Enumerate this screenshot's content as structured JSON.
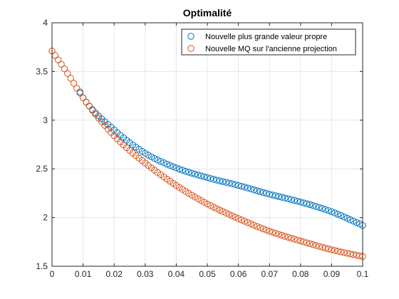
{
  "chart_data": {
    "type": "scatter",
    "title": "Optimalité",
    "xlabel": "",
    "ylabel": "",
    "xlim": [
      0,
      0.1
    ],
    "ylim": [
      1.5,
      4
    ],
    "xticks": [
      "0",
      "0.01",
      "0.02",
      "0.03",
      "0.04",
      "0.05",
      "0.06",
      "0.07",
      "0.08",
      "0.09",
      "0.1"
    ],
    "yticks": [
      "1.5",
      "2",
      "2.5",
      "3",
      "3.5",
      "4"
    ],
    "grid": true,
    "legend_position": "top-right",
    "marker": "open-circle",
    "series": [
      {
        "name": "Nouvelle plus grande valeur propre",
        "color": "#0072BD",
        "x": [
          0.009,
          0.01,
          0.02,
          0.03,
          0.04,
          0.05,
          0.06,
          0.07,
          0.08,
          0.09,
          0.1
        ],
        "y": [
          3.29,
          3.23,
          2.9,
          2.66,
          2.51,
          2.41,
          2.33,
          2.24,
          2.16,
          2.06,
          1.92
        ]
      },
      {
        "name": "Nouvelle MQ sur l'ancienne projection",
        "color": "#D95319",
        "x": [
          0,
          0.005,
          0.01,
          0.02,
          0.03,
          0.04,
          0.05,
          0.06,
          0.07,
          0.08,
          0.09,
          0.1
        ],
        "y": [
          3.71,
          3.48,
          3.23,
          2.84,
          2.56,
          2.33,
          2.14,
          1.99,
          1.86,
          1.76,
          1.67,
          1.6
        ]
      }
    ]
  }
}
